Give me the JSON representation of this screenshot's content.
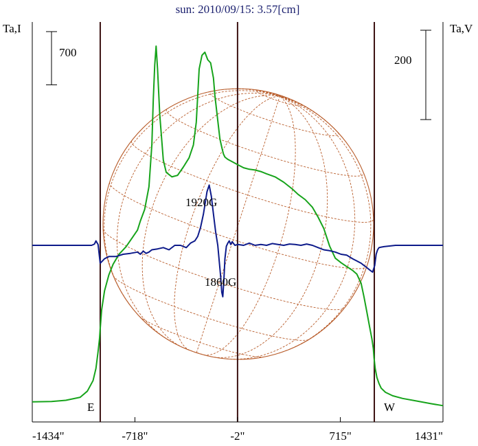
{
  "chart_data": {
    "type": "line",
    "title": "sun: 2010/09/15: 3.57[cm]",
    "ylabel_left": "Ta,I",
    "ylabel_right": "Ta,V",
    "xlim": [
      -1434,
      1431
    ],
    "x_ticks": [
      -1434,
      -718,
      -2,
      715,
      1431
    ],
    "x_tick_labels": [
      "-1434\"",
      "-718\"",
      "-2\"",
      "715\"",
      "1431\""
    ],
    "vertical_lines": [
      -960,
      -2,
      952
    ],
    "limb_labels": {
      "east": "E",
      "west": "W"
    },
    "scale_bars": {
      "left": "700",
      "right": "200"
    },
    "annotations": [
      {
        "text": "1920G",
        "x": -230,
        "feature": "positive V peak"
      },
      {
        "text": "1860G",
        "x": -120,
        "feature": "negative V peak"
      }
    ],
    "colors": {
      "intensity": "#16a31a",
      "polarization": "#0d1a8a",
      "grid": "#b85c2a",
      "axis": "#3a1010",
      "title": "#1a1f6e"
    },
    "series": [
      {
        "name": "I",
        "color": "#16a31a",
        "x": [
          -1434,
          -1300,
          -1200,
          -1100,
          -1050,
          -1010,
          -990,
          -975,
          -965,
          -960,
          -950,
          -930,
          -900,
          -870,
          -830,
          -780,
          -740,
          -700,
          -680,
          -650,
          -620,
          -600,
          -590,
          -580,
          -570,
          -560,
          -545,
          -520,
          -500,
          -460,
          -420,
          -380,
          -340,
          -310,
          -290,
          -270,
          -250,
          -230,
          -210,
          -190,
          -170,
          -160,
          -140,
          -125,
          -110,
          -100,
          -90,
          -70,
          -40,
          0,
          40,
          80,
          120,
          160,
          200,
          260,
          320,
          380,
          420,
          470,
          520,
          560,
          600,
          640,
          680,
          720,
          760,
          800,
          830,
          860,
          880,
          900,
          920,
          935,
          945,
          950,
          958,
          970,
          985,
          1000,
          1030,
          1080,
          1150,
          1250,
          1350,
          1431
        ],
        "y": [
          120,
          125,
          140,
          180,
          260,
          400,
          560,
          780,
          950,
          1080,
          1330,
          1580,
          1790,
          1930,
          2060,
          2160,
          2270,
          2380,
          2500,
          2650,
          2950,
          3500,
          4100,
          4550,
          4800,
          4500,
          3900,
          3300,
          3140,
          3080,
          3100,
          3210,
          3330,
          3500,
          3800,
          4500,
          4680,
          4720,
          4620,
          4580,
          4380,
          4150,
          3820,
          3580,
          3450,
          3380,
          3340,
          3310,
          3280,
          3240,
          3200,
          3180,
          3170,
          3150,
          3120,
          3080,
          3010,
          2920,
          2850,
          2780,
          2680,
          2550,
          2400,
          2170,
          2010,
          1950,
          1900,
          1850,
          1800,
          1680,
          1500,
          1300,
          1100,
          950,
          820,
          700,
          560,
          440,
          360,
          300,
          245,
          200,
          165,
          130,
          95,
          70
        ]
      },
      {
        "name": "V",
        "color": "#0d1a8a",
        "x": [
          -1434,
          -1100,
          -1020,
          -1000,
          -990,
          -975,
          -960,
          -945,
          -930,
          -900,
          -850,
          -800,
          -750,
          -700,
          -680,
          -660,
          -640,
          -620,
          -600,
          -560,
          -520,
          -480,
          -440,
          -400,
          -360,
          -330,
          -300,
          -280,
          -260,
          -240,
          -230,
          -215,
          -200,
          -185,
          -170,
          -155,
          -140,
          -130,
          -120,
          -112,
          -105,
          -98,
          -90,
          -80,
          -70,
          -60,
          -50,
          -40,
          -20,
          0,
          40,
          80,
          120,
          160,
          200,
          240,
          280,
          320,
          360,
          400,
          440,
          480,
          520,
          560,
          600,
          640,
          680,
          720,
          760,
          800,
          830,
          860,
          880,
          900,
          920,
          940,
          955,
          965,
          975,
          985,
          1000,
          1020,
          1100,
          1200,
          1300,
          1431
        ],
        "y": [
          0,
          0,
          0,
          3,
          10,
          2,
          -40,
          -35,
          -30,
          -25,
          -25,
          -20,
          -18,
          -15,
          -20,
          -13,
          -18,
          -15,
          -10,
          -8,
          -5,
          -10,
          0,
          0,
          -5,
          5,
          10,
          20,
          40,
          70,
          90,
          120,
          135,
          110,
          70,
          30,
          0,
          -35,
          -70,
          -105,
          -115,
          -80,
          -30,
          -2,
          5,
          10,
          2,
          8,
          0,
          2,
          0,
          5,
          0,
          2,
          0,
          4,
          2,
          0,
          3,
          2,
          0,
          3,
          0,
          -5,
          -10,
          -12,
          -15,
          -20,
          -22,
          -30,
          -35,
          -40,
          -45,
          -50,
          -55,
          -60,
          -45,
          -20,
          -10,
          -5,
          -4,
          -3,
          0,
          0,
          0,
          0
        ]
      }
    ]
  }
}
